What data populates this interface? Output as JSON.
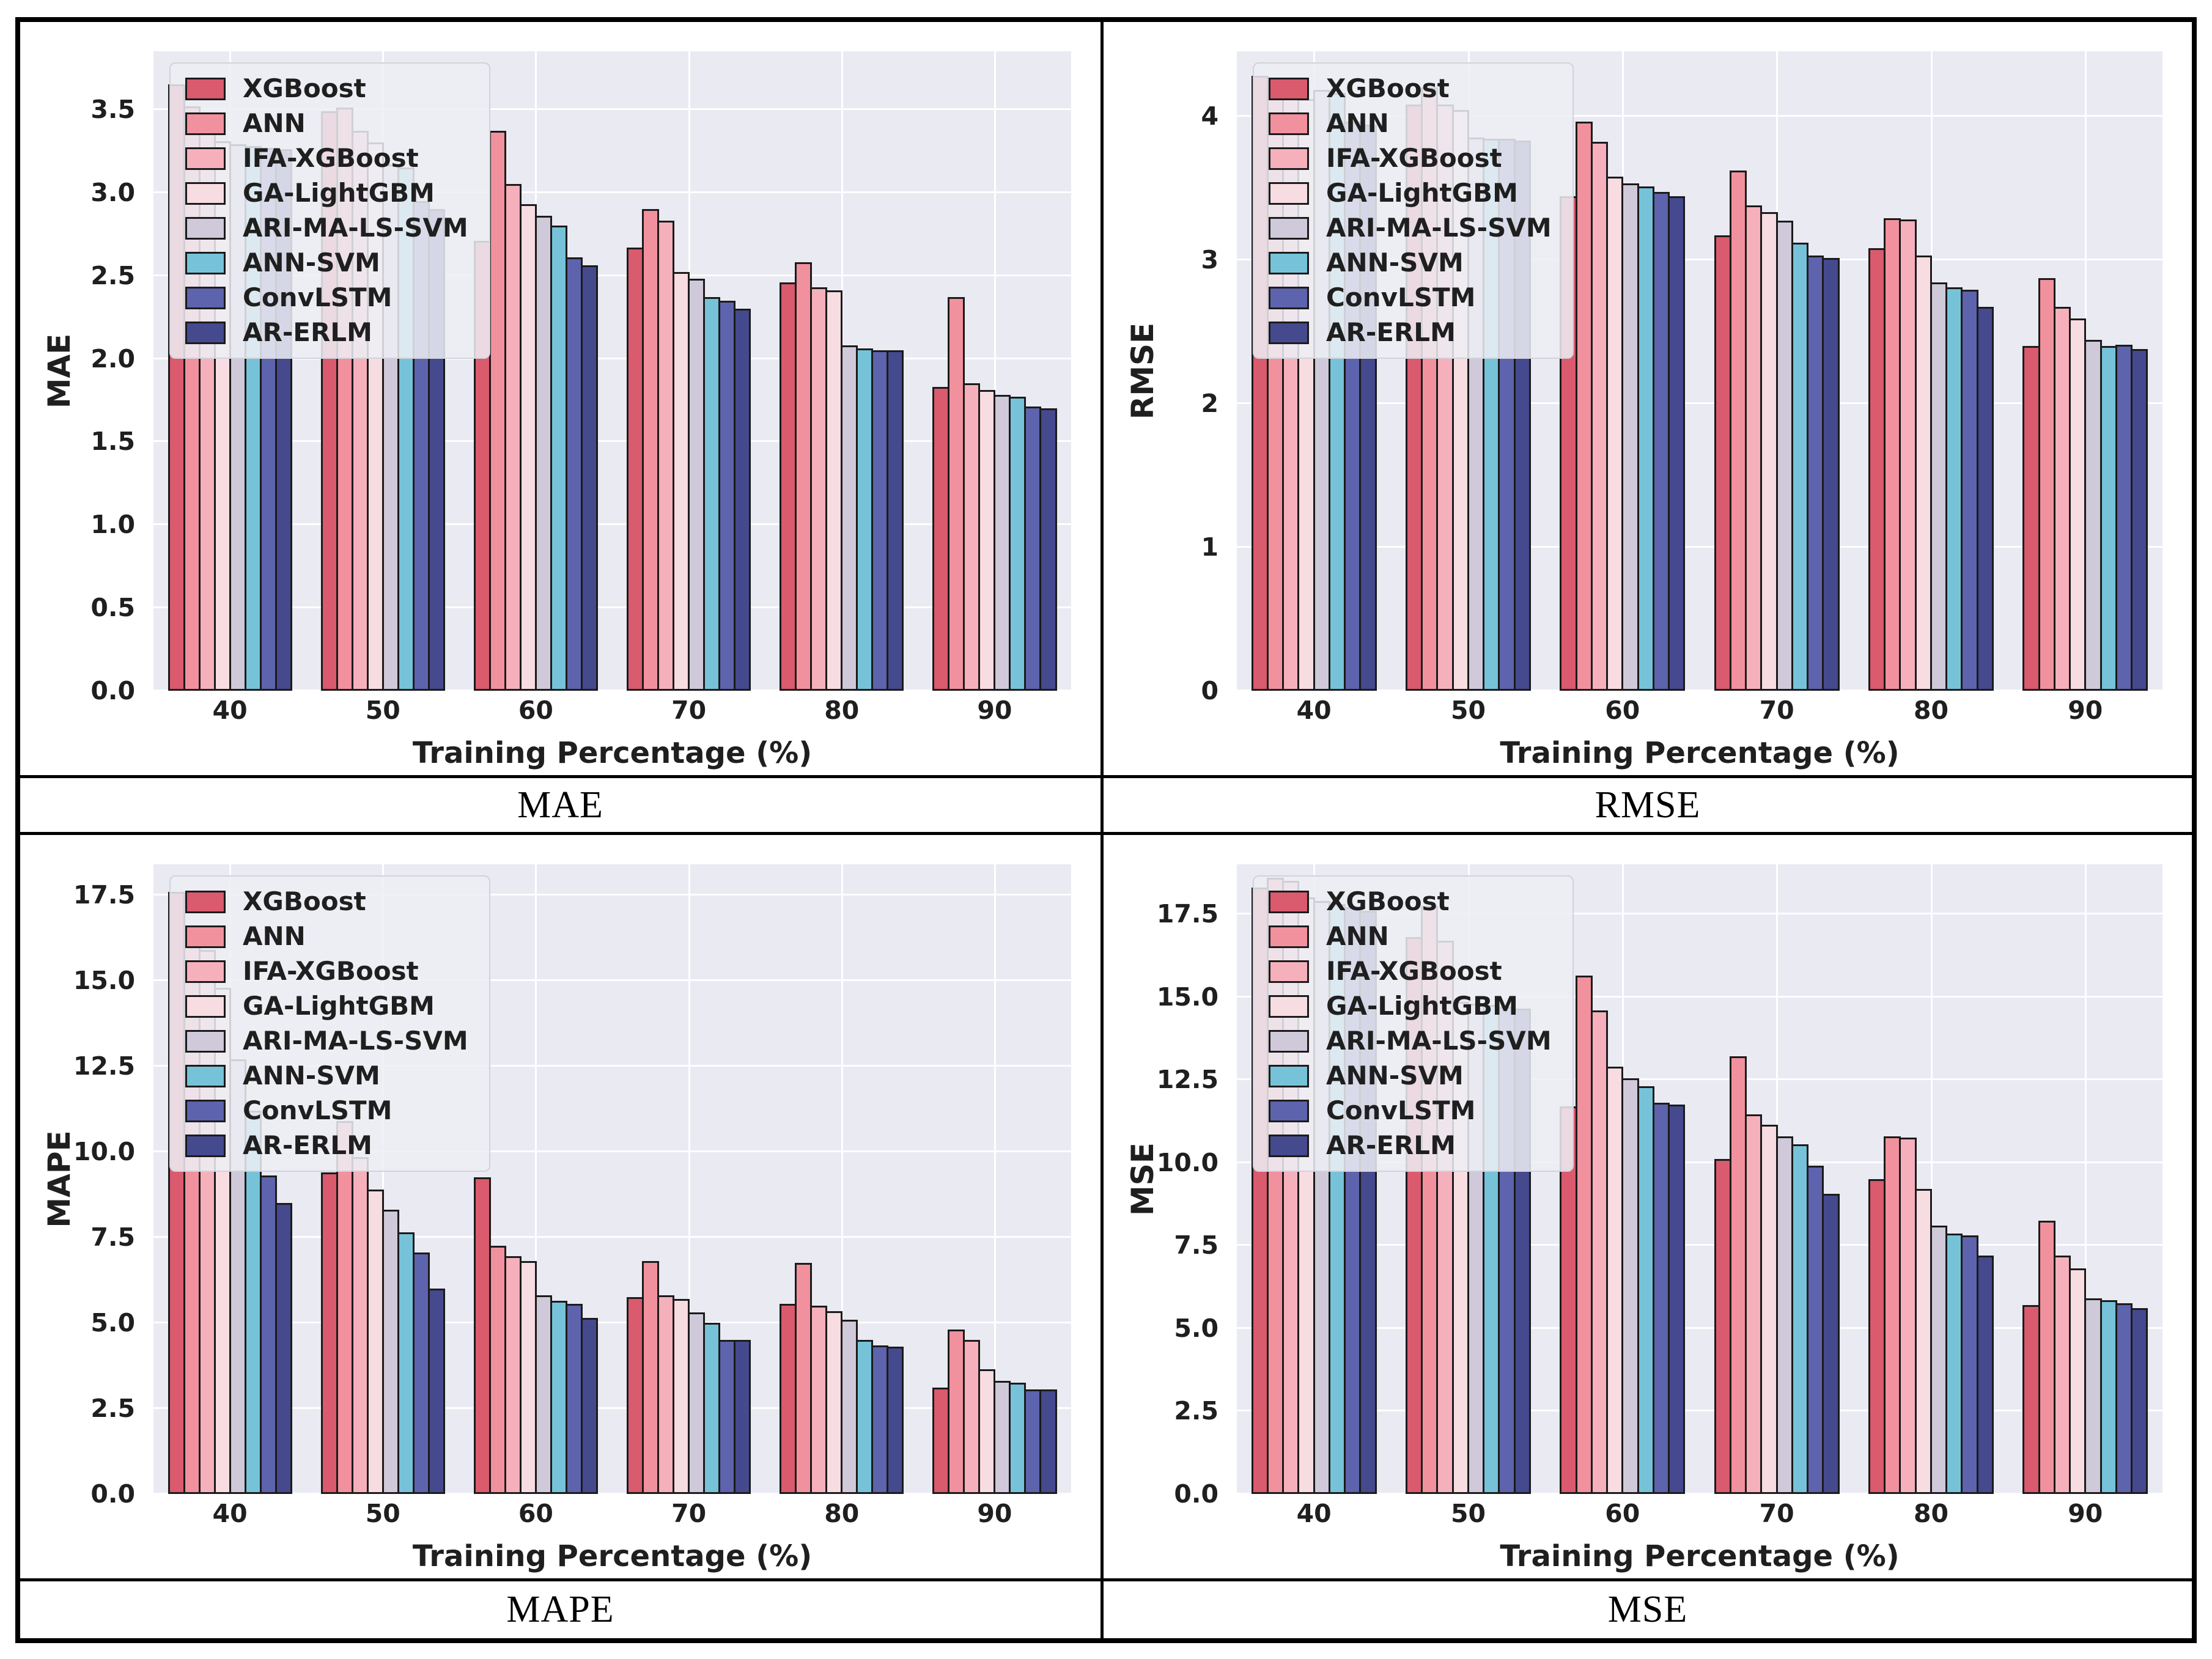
{
  "page": {
    "background": "#ffffff",
    "frame_border_color": "#000000",
    "plot_background": "#e9eaf2",
    "gridline_color": "#ffffff",
    "bar_edge_color": "#1b1b1b",
    "text_color": "#1f1f1f"
  },
  "chart_data": [
    {
      "type": "bar",
      "id": "mae",
      "caption": "MAE",
      "ylabel": "MAE",
      "xlabel": "Training Percentage (%)",
      "categories": [
        "40",
        "50",
        "60",
        "70",
        "80",
        "90"
      ],
      "ylim": [
        0,
        3.85
      ],
      "yticks": [
        0.0,
        0.5,
        1.0,
        1.5,
        2.0,
        2.5,
        3.0,
        3.5
      ],
      "ytick_labels": [
        "0.0",
        "0.5",
        "1.0",
        "1.5",
        "2.0",
        "2.5",
        "3.0",
        "3.5"
      ],
      "grid": true,
      "legend_position": "upper-left",
      "series": [
        {
          "name": "XGBoost",
          "color": "#da5a6e",
          "values": [
            3.65,
            3.49,
            2.71,
            2.67,
            2.46,
            1.83
          ]
        },
        {
          "name": "ANN",
          "color": "#f2919e",
          "values": [
            3.52,
            3.51,
            3.37,
            2.9,
            2.58,
            2.37
          ]
        },
        {
          "name": "IFA-XGBoost",
          "color": "#f6b0bc",
          "values": [
            3.4,
            3.37,
            3.05,
            2.83,
            2.43,
            1.85
          ]
        },
        {
          "name": "GA-LightGBM",
          "color": "#f7dce1",
          "values": [
            3.31,
            3.3,
            2.93,
            2.52,
            2.41,
            1.81
          ]
        },
        {
          "name": "ARI-MA-LS-SVM",
          "color": "#cfc9da",
          "values": [
            3.29,
            3.17,
            2.86,
            2.48,
            2.08,
            1.78
          ]
        },
        {
          "name": "ANN-SVM",
          "color": "#76c3d9",
          "values": [
            3.28,
            3.15,
            2.8,
            2.37,
            2.06,
            1.77
          ]
        },
        {
          "name": "ConvLSTM",
          "color": "#5d63ac",
          "values": [
            3.27,
            2.95,
            2.61,
            2.35,
            2.05,
            1.71
          ]
        },
        {
          "name": "AR-ERLM",
          "color": "#45498e",
          "values": [
            3.26,
            2.9,
            2.56,
            2.3,
            2.05,
            1.7
          ]
        }
      ]
    },
    {
      "type": "bar",
      "id": "rmse",
      "caption": "RMSE",
      "ylabel": "RMSE",
      "xlabel": "Training Percentage (%)",
      "categories": [
        "40",
        "50",
        "60",
        "70",
        "80",
        "90"
      ],
      "ylim": [
        0,
        4.45
      ],
      "yticks": [
        0,
        1,
        2,
        3,
        4
      ],
      "ytick_labels": [
        "0",
        "1",
        "2",
        "3",
        "4"
      ],
      "grid": true,
      "legend_position": "upper-left",
      "series": [
        {
          "name": "XGBoost",
          "color": "#da5a6e",
          "values": [
            4.28,
            4.08,
            3.44,
            3.17,
            3.08,
            2.4
          ]
        },
        {
          "name": "ANN",
          "color": "#f2919e",
          "values": [
            4.26,
            4.2,
            3.96,
            3.62,
            3.29,
            2.87
          ]
        },
        {
          "name": "IFA-XGBoost",
          "color": "#f6b0bc",
          "values": [
            4.21,
            4.08,
            3.82,
            3.38,
            3.28,
            2.67
          ]
        },
        {
          "name": "GA-LightGBM",
          "color": "#f7dce1",
          "values": [
            4.12,
            4.04,
            3.58,
            3.33,
            3.03,
            2.59
          ]
        },
        {
          "name": "ARI-MA-LS-SVM",
          "color": "#cfc9da",
          "values": [
            4.18,
            3.85,
            3.53,
            3.27,
            2.84,
            2.44
          ]
        },
        {
          "name": "ANN-SVM",
          "color": "#76c3d9",
          "values": [
            4.16,
            3.84,
            3.51,
            3.12,
            2.81,
            2.4
          ]
        },
        {
          "name": "ConvLSTM",
          "color": "#5d63ac",
          "values": [
            3.96,
            3.84,
            3.47,
            3.03,
            2.79,
            2.41
          ]
        },
        {
          "name": "AR-ERLM",
          "color": "#45498e",
          "values": [
            3.94,
            3.83,
            3.44,
            3.01,
            2.67,
            2.38
          ]
        }
      ]
    },
    {
      "type": "bar",
      "id": "mape",
      "caption": "MAPE",
      "ylabel": "MAPE",
      "xlabel": "Training Percentage (%)",
      "categories": [
        "40",
        "50",
        "60",
        "70",
        "80",
        "90"
      ],
      "ylim": [
        0,
        18.4
      ],
      "yticks": [
        0.0,
        2.5,
        5.0,
        7.5,
        10.0,
        12.5,
        15.0,
        17.5
      ],
      "ytick_labels": [
        "0.0",
        "2.5",
        "5.0",
        "7.5",
        "10.0",
        "12.5",
        "15.0",
        "17.5"
      ],
      "grid": true,
      "legend_position": "upper-left",
      "series": [
        {
          "name": "XGBoost",
          "color": "#da5a6e",
          "values": [
            17.6,
            9.4,
            9.25,
            5.75,
            5.55,
            3.1
          ]
        },
        {
          "name": "ANN",
          "color": "#f2919e",
          "values": [
            16.4,
            10.9,
            7.25,
            6.8,
            6.75,
            4.8
          ]
        },
        {
          "name": "IFA-XGBoost",
          "color": "#f6b0bc",
          "values": [
            15.9,
            9.85,
            6.95,
            5.8,
            5.5,
            4.5
          ]
        },
        {
          "name": "GA-LightGBM",
          "color": "#f7dce1",
          "values": [
            14.8,
            8.9,
            6.8,
            5.7,
            5.35,
            3.65
          ]
        },
        {
          "name": "ARI-MA-LS-SVM",
          "color": "#cfc9da",
          "values": [
            12.7,
            8.3,
            5.8,
            5.3,
            5.1,
            3.3
          ]
        },
        {
          "name": "ANN-SVM",
          "color": "#76c3d9",
          "values": [
            11.2,
            7.65,
            5.65,
            5.0,
            4.5,
            3.25
          ]
        },
        {
          "name": "ConvLSTM",
          "color": "#5d63ac",
          "values": [
            9.3,
            7.05,
            5.55,
            4.5,
            4.35,
            3.05
          ]
        },
        {
          "name": "AR-ERLM",
          "color": "#45498e",
          "values": [
            8.5,
            6.0,
            5.15,
            4.5,
            4.3,
            3.05
          ]
        }
      ]
    },
    {
      "type": "bar",
      "id": "mse",
      "caption": "MSE",
      "ylabel": "MSE",
      "xlabel": "Training Percentage (%)",
      "categories": [
        "40",
        "50",
        "60",
        "70",
        "80",
        "90"
      ],
      "ylim": [
        0,
        19.0
      ],
      "yticks": [
        0.0,
        2.5,
        5.0,
        7.5,
        10.0,
        12.5,
        15.0,
        17.5
      ],
      "ytick_labels": [
        "0.0",
        "2.5",
        "5.0",
        "7.5",
        "10.0",
        "12.5",
        "15.0",
        "17.5"
      ],
      "grid": true,
      "legend_position": "upper-left",
      "series": [
        {
          "name": "XGBoost",
          "color": "#da5a6e",
          "values": [
            18.3,
            16.8,
            11.7,
            10.1,
            9.5,
            5.7
          ]
        },
        {
          "name": "ANN",
          "color": "#f2919e",
          "values": [
            18.6,
            17.75,
            15.65,
            13.2,
            10.8,
            8.25
          ]
        },
        {
          "name": "IFA-XGBoost",
          "color": "#f6b0bc",
          "values": [
            18.5,
            16.7,
            14.6,
            11.45,
            10.75,
            7.2
          ]
        },
        {
          "name": "GA-LightGBM",
          "color": "#f7dce1",
          "values": [
            18.0,
            14.85,
            12.9,
            11.15,
            9.2,
            6.8
          ]
        },
        {
          "name": "ARI-MA-LS-SVM",
          "color": "#cfc9da",
          "values": [
            17.9,
            14.8,
            12.55,
            10.8,
            8.1,
            5.9
          ]
        },
        {
          "name": "ANN-SVM",
          "color": "#76c3d9",
          "values": [
            17.8,
            14.75,
            12.3,
            10.55,
            7.85,
            5.85
          ]
        },
        {
          "name": "ConvLSTM",
          "color": "#5d63ac",
          "values": [
            17.7,
            14.7,
            11.8,
            9.9,
            7.8,
            5.75
          ]
        },
        {
          "name": "AR-ERLM",
          "color": "#45498e",
          "values": [
            17.6,
            14.65,
            11.75,
            9.05,
            7.2,
            5.6
          ]
        }
      ]
    }
  ]
}
